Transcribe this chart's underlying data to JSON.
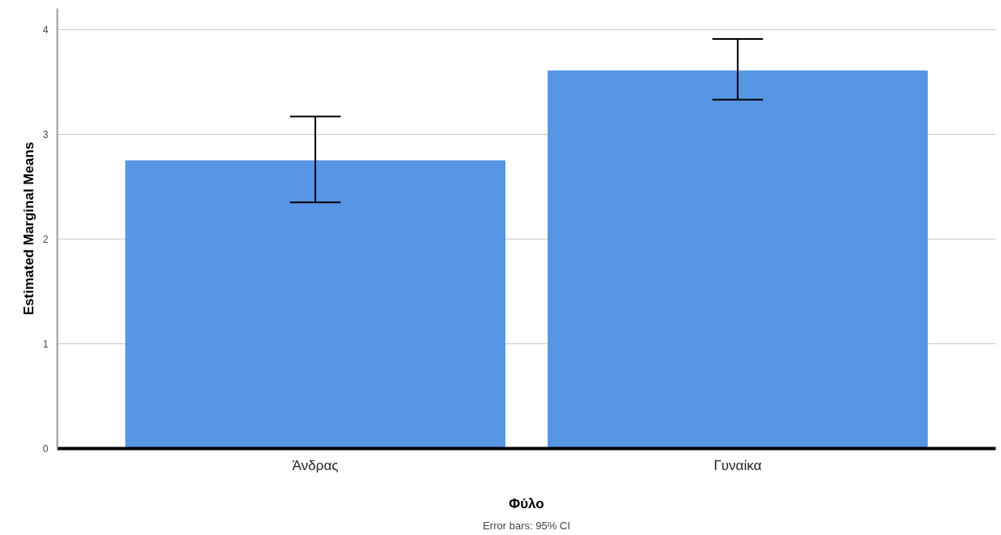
{
  "chart_data": {
    "type": "bar",
    "xlabel": "Φύλο",
    "ylabel": "Estimated Marginal Means",
    "categories": [
      "Άνδρας",
      "Γυναίκα"
    ],
    "values": [
      2.75,
      3.61
    ],
    "errors": [
      [
        2.35,
        3.17
      ],
      [
        3.33,
        3.91
      ]
    ],
    "color": "#5595e3",
    "ylim": [
      0,
      4.2
    ],
    "yticks": [
      0,
      1,
      2,
      3,
      4
    ],
    "grid": "y",
    "annotations": [
      "Error bars: 95% CI"
    ]
  }
}
